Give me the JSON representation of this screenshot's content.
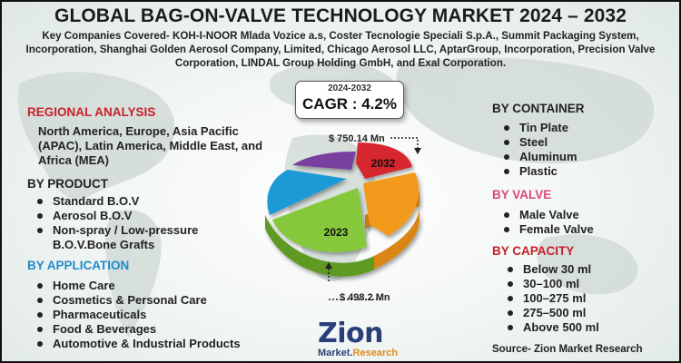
{
  "title": "GLOBAL BAG-ON-VALVE TECHNOLOGY MARKET 2024 – 2032",
  "companies": "Key Companies Covered- KOH-I-NOOR Mlada Vozice a.s, Coster Tecnologie Speciali S.p.A., Summit Packaging System, Incorporation, Shanghai Golden Aerosol Company, Limited, Chicago Aerosol LLC, AptarGroup, Incorporation, Precision Valve Corporation, LINDAL Group Holding GmbH, and Exal Corporation.",
  "cagr": {
    "period": "2024-2032",
    "value": "CAGR : 4.2%"
  },
  "regional": {
    "heading": "REGIONAL ANALYSIS",
    "text": "North America, Europe, Asia Pacific (APAC), Latin America, Middle East, and Africa (MEA)"
  },
  "product": {
    "heading": "BY PRODUCT",
    "items": [
      "Standard B.O.V",
      "Aerosol B.O.V",
      "Non-spray / Low-pressure B.O.V.Bone Grafts"
    ]
  },
  "application": {
    "heading": "BY APPLICATION",
    "items": [
      "Home Care",
      "Cosmetics & Personal Care",
      "Pharmaceuticals",
      "Food & Beverages",
      "Automotive & Industrial Products"
    ]
  },
  "container": {
    "heading": "BY CONTAINER",
    "items": [
      "Tin Plate",
      "Steel",
      "Aluminum",
      "Plastic"
    ]
  },
  "valve": {
    "heading": "BY VALVE",
    "items": [
      "Male Valve",
      "Female Valve"
    ]
  },
  "capacity": {
    "heading": "BY CAPACITY",
    "items": [
      "Below 30 ml",
      "30–100 ml",
      "100–275 ml",
      "275–500 ml",
      "Above 500 ml"
    ]
  },
  "chart_data": {
    "type": "pie",
    "slice_labels": [
      "2032",
      "2023"
    ],
    "annotations": [
      "$ 750.14 Mn",
      "$ 498.2 Mn"
    ],
    "colors": {
      "red": "#d8262e",
      "orange": "#f39a1e",
      "green": "#86c83a",
      "blue": "#1f9ad6",
      "purple": "#7a3fa0"
    }
  },
  "logo": {
    "main": "Zion",
    "sub_left": "Market.",
    "sub_right": "Research"
  },
  "source": "Source- Zion Market Research"
}
